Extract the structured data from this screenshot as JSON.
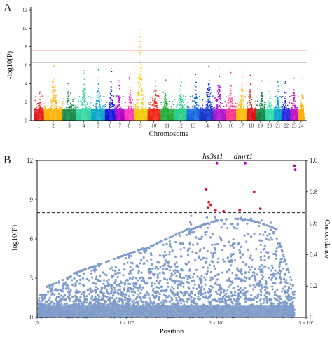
{
  "colors": {
    "chromosomes": [
      "#e41a1c",
      "#ffb000",
      "#1b8a4a",
      "#2fd3a0",
      "#08a6c8",
      "#1010dd",
      "#b000c8",
      "#ff33b8",
      "#f2c800",
      "#ee2211",
      "#22aa33",
      "#26cc88",
      "#1166dd",
      "#1133cc",
      "#aa11cc",
      "#ff3388",
      "#ffbb00",
      "#dd1111",
      "#108040",
      "#33ddaa",
      "#009fcc",
      "#2222dd",
      "#c011c0",
      "#ffaa00"
    ],
    "threshold_red": "#f08080",
    "threshold_gray": "#999999",
    "scatter_blue": "#7f9ccb",
    "hit_red": "#e8102a",
    "hit_purple": "#b000c8"
  },
  "panels": [
    {
      "letter": "A",
      "chart_data": {
        "type": "scatter",
        "subtype": "manhattan",
        "xlabel": "Chromosome",
        "ylabel": "-log10(P)",
        "ylim": [
          0,
          12
        ],
        "yticks": [
          "0",
          "2",
          "4",
          "6",
          "8",
          "10",
          "12"
        ],
        "categories": [
          "1",
          "2",
          "3",
          "4",
          "5",
          "6",
          "7",
          "8",
          "9",
          "10",
          "11",
          "12",
          "13",
          "14",
          "15",
          "16",
          "17",
          "18",
          "19",
          "20",
          "21",
          "22",
          "23",
          "24"
        ],
        "peak_neglog10p": [
          3.1,
          5.9,
          4.0,
          5.4,
          5.5,
          5.6,
          4.3,
          5.0,
          9.9,
          4.3,
          4.4,
          4.6,
          5.0,
          5.9,
          5.6,
          5.2,
          5.4,
          4.9,
          4.3,
          4.1,
          4.2,
          4.2,
          4.6,
          4.6
        ],
        "thresholds": [
          {
            "value": 7.6,
            "color": "red"
          },
          {
            "value": 6.3,
            "color": "gray"
          }
        ],
        "grid": false,
        "legend": "none"
      }
    },
    {
      "letter": "B",
      "chart_data": {
        "type": "scatter",
        "xlabel": "Position",
        "ylabel": "-log10(P)",
        "y2label": "Concordance",
        "xlim": [
          0,
          30000000
        ],
        "ylim": [
          0,
          12
        ],
        "y2lim": [
          0,
          1
        ],
        "xticks": [
          {
            "value": 0,
            "label": "0"
          },
          {
            "value": 10000000,
            "label": "1 × 10⁷"
          },
          {
            "value": 20000000,
            "label": "2 × 10⁷"
          },
          {
            "value": 30000000,
            "label": "3 × 10⁷"
          }
        ],
        "yticks": [
          "0",
          "3",
          "6",
          "9",
          "12"
        ],
        "y2ticks": [
          "0",
          "0.2",
          "0.4",
          "0.6",
          "0.8",
          "1.0"
        ],
        "threshold": 8.0,
        "annotations": [
          {
            "text": "hs3st1",
            "x": 19600000
          },
          {
            "text": "dmrt1",
            "x": 23000000
          }
        ],
        "series": [
          {
            "name": "",
            "color": "blue",
            "description": "background SNPs"
          },
          {
            "name": "",
            "color": "red",
            "x": [
              18850000,
              19150000,
              19350000,
              19050000,
              19900000,
              20800000,
              22600000,
              24200000,
              24900000
            ],
            "y": [
              9.8,
              8.8,
              8.6,
              8.4,
              8.2,
              8.1,
              8.2,
              9.6,
              8.3
            ]
          },
          {
            "name": "",
            "color": "purple",
            "x": [
              20050000,
              23200000,
              28700000,
              28800000
            ],
            "y": [
              11.8,
              11.8,
              11.6,
              11.3
            ]
          }
        ]
      }
    }
  ]
}
